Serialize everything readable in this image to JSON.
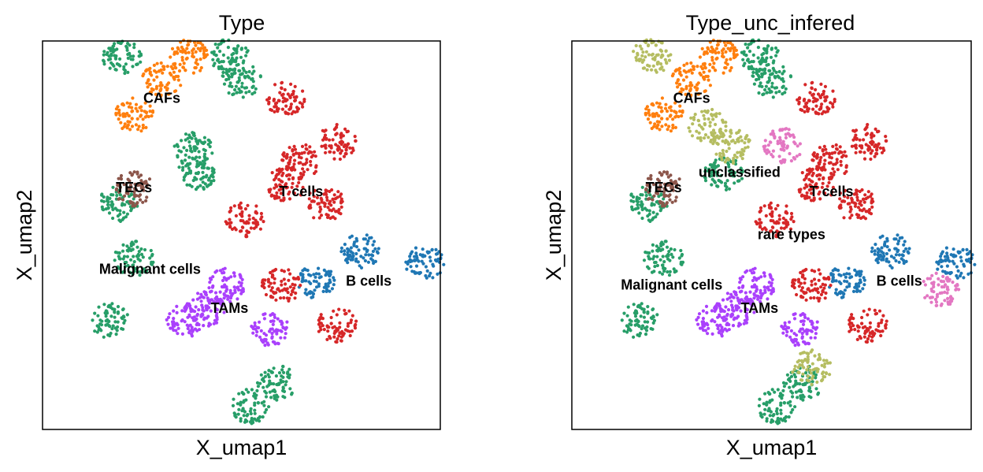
{
  "figure": {
    "background": "#ffffff"
  },
  "chart_data": [
    {
      "type": "scatter",
      "title": "Type",
      "xlabel": "X_umap1",
      "ylabel": "X_umap2",
      "grid": false,
      "xticks": "none",
      "yticks": "none",
      "labels_on_data": true,
      "series": [
        {
          "name": "B cells",
          "color": "#1f77b4",
          "centers": [
            [
              8.0,
              4.6
            ],
            [
              9.6,
              4.3
            ],
            [
              6.9,
              3.8
            ]
          ]
        },
        {
          "name": "CAFs",
          "color": "#ff7f0e",
          "centers": [
            [
              3.0,
              9.0
            ],
            [
              3.7,
              9.6
            ],
            [
              2.3,
              8.1
            ]
          ]
        },
        {
          "name": "Malignant cells",
          "color": "#279e68",
          "centers": [
            [
              1.7,
              2.8
            ],
            [
              2.3,
              4.4
            ],
            [
              1.9,
              5.8
            ],
            [
              5.9,
              1.2
            ],
            [
              5.2,
              0.6
            ],
            [
              5.0,
              9.0
            ],
            [
              4.7,
              9.6
            ],
            [
              2.0,
              9.6
            ],
            [
              3.9,
              6.6
            ],
            [
              3.8,
              7.2
            ]
          ]
        },
        {
          "name": "T cells",
          "color": "#d62728",
          "centers": [
            [
              6.5,
              6.9
            ],
            [
              6.1,
              6.3
            ],
            [
              7.4,
              7.4
            ],
            [
              7.1,
              5.8
            ],
            [
              5.1,
              5.4
            ],
            [
              6.1,
              8.5
            ],
            [
              7.4,
              2.7
            ],
            [
              6.0,
              3.7
            ]
          ]
        },
        {
          "name": "TAMs",
          "color": "#aa40fc",
          "centers": [
            [
              4.1,
              3.1
            ],
            [
              4.6,
              3.7
            ],
            [
              3.6,
              2.8
            ],
            [
              5.7,
              2.6
            ]
          ]
        },
        {
          "name": "TECs",
          "color": "#8c564b",
          "centers": [
            [
              2.3,
              6.2
            ]
          ]
        }
      ],
      "annotations": [
        {
          "text": "CAFs",
          "x": 3.0,
          "y": 8.5
        },
        {
          "text": "TECs",
          "x": 2.3,
          "y": 6.2
        },
        {
          "text": "T cells",
          "x": 6.5,
          "y": 6.1
        },
        {
          "text": "Malignant cells",
          "x": 2.7,
          "y": 4.1
        },
        {
          "text": "B cells",
          "x": 8.2,
          "y": 3.8
        },
        {
          "text": "TAMs",
          "x": 4.7,
          "y": 3.1
        }
      ]
    },
    {
      "type": "scatter",
      "title": "Type_unc_infered",
      "xlabel": "X_umap1",
      "ylabel": "X_umap2",
      "grid": false,
      "xticks": "none",
      "yticks": "none",
      "labels_on_data": true,
      "series": [
        {
          "name": "B cells",
          "color": "#1f77b4",
          "centers": [
            [
              8.0,
              4.6
            ],
            [
              9.6,
              4.3
            ],
            [
              6.9,
              3.8
            ]
          ]
        },
        {
          "name": "CAFs",
          "color": "#ff7f0e",
          "centers": [
            [
              3.0,
              9.0
            ],
            [
              3.7,
              9.6
            ],
            [
              2.3,
              8.1
            ]
          ]
        },
        {
          "name": "Malignant cells",
          "color": "#279e68",
          "centers": [
            [
              1.7,
              2.8
            ],
            [
              2.3,
              4.4
            ],
            [
              1.9,
              5.8
            ],
            [
              5.8,
              1.2
            ],
            [
              5.1,
              0.6
            ],
            [
              5.0,
              9.0
            ],
            [
              4.7,
              9.6
            ],
            [
              3.8,
              6.6
            ]
          ]
        },
        {
          "name": "T cells",
          "color": "#d62728",
          "centers": [
            [
              6.5,
              6.9
            ],
            [
              6.1,
              6.3
            ],
            [
              7.4,
              7.4
            ],
            [
              7.1,
              5.8
            ],
            [
              5.1,
              5.4
            ],
            [
              6.1,
              8.5
            ],
            [
              7.4,
              2.7
            ],
            [
              6.0,
              3.7
            ]
          ]
        },
        {
          "name": "TAMs",
          "color": "#aa40fc",
          "centers": [
            [
              4.1,
              3.1
            ],
            [
              4.6,
              3.7
            ],
            [
              3.6,
              2.8
            ],
            [
              5.7,
              2.6
            ]
          ]
        },
        {
          "name": "TECs",
          "color": "#8c564b",
          "centers": [
            [
              2.3,
              6.2
            ]
          ]
        },
        {
          "name": "unclassified",
          "color": "#b5bd61",
          "centers": [
            [
              2.0,
              9.6
            ],
            [
              4.0,
              7.3
            ],
            [
              6.0,
              1.6
            ],
            [
              3.4,
              7.8
            ]
          ]
        },
        {
          "name": "rare types",
          "color": "#e377c2",
          "centers": [
            [
              5.3,
              7.3
            ],
            [
              9.2,
              3.6
            ]
          ]
        }
      ],
      "annotations": [
        {
          "text": "CAFs",
          "x": 3.0,
          "y": 8.5
        },
        {
          "text": "unclassified",
          "x": 4.2,
          "y": 6.6
        },
        {
          "text": "TECs",
          "x": 2.3,
          "y": 6.2
        },
        {
          "text": "T cells",
          "x": 6.5,
          "y": 6.1
        },
        {
          "text": "rare types",
          "x": 5.5,
          "y": 5.0
        },
        {
          "text": "Malignant cells",
          "x": 2.5,
          "y": 3.7
        },
        {
          "text": "B cells",
          "x": 8.2,
          "y": 3.8
        },
        {
          "text": "TAMs",
          "x": 4.7,
          "y": 3.1
        }
      ]
    }
  ]
}
